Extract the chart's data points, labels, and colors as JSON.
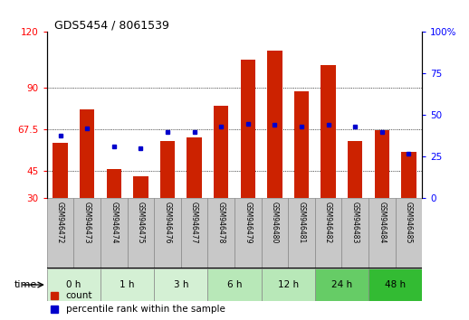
{
  "title": "GDS5454 / 8061539",
  "samples": [
    "GSM946472",
    "GSM946473",
    "GSM946474",
    "GSM946475",
    "GSM946476",
    "GSM946477",
    "GSM946478",
    "GSM946479",
    "GSM946480",
    "GSM946481",
    "GSM946482",
    "GSM946483",
    "GSM946484",
    "GSM946485"
  ],
  "count_values": [
    60,
    78,
    46,
    42,
    61,
    63,
    80,
    105,
    110,
    88,
    102,
    61,
    67,
    55
  ],
  "percentile_values": [
    38,
    42,
    31,
    30,
    40,
    40,
    43,
    45,
    44,
    43,
    44,
    43,
    40,
    27
  ],
  "time_groups": [
    {
      "label": "0 h",
      "indices": [
        0,
        1
      ]
    },
    {
      "label": "1 h",
      "indices": [
        2,
        3
      ]
    },
    {
      "label": "3 h",
      "indices": [
        4,
        5
      ]
    },
    {
      "label": "6 h",
      "indices": [
        6,
        7
      ]
    },
    {
      "label": "12 h",
      "indices": [
        8,
        9
      ]
    },
    {
      "label": "24 h",
      "indices": [
        10,
        11
      ]
    },
    {
      "label": "48 h",
      "indices": [
        12,
        13
      ]
    }
  ],
  "time_colors": [
    "#d4f0d4",
    "#d4f0d4",
    "#d4f0d4",
    "#b8e8b8",
    "#b8e8b8",
    "#66cc66",
    "#33bb33"
  ],
  "left_yticks": [
    30,
    45,
    67.5,
    90,
    120
  ],
  "left_ylim": [
    30,
    120
  ],
  "right_yticks": [
    0,
    25,
    50,
    75,
    100
  ],
  "right_ylim": [
    0,
    100
  ],
  "bar_color": "#cc2200",
  "percentile_color": "#0000cc",
  "bg_color": "#ffffff",
  "plot_bg": "#ffffff",
  "legend_count": "count",
  "legend_percentile": "percentile rank within the sample",
  "bar_width": 0.55
}
